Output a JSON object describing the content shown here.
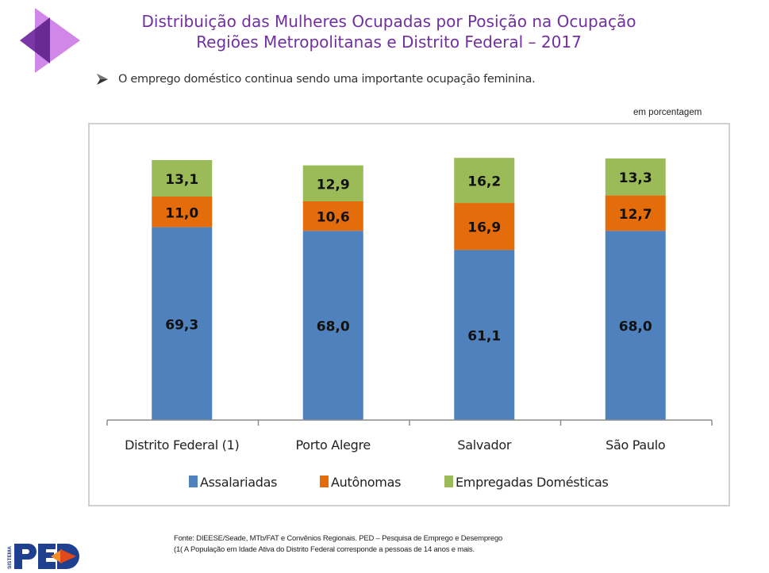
{
  "header": {
    "title_line1": "Distribuição das Mulheres Ocupadas por Posição na Ocupação",
    "title_line2": "Regiões Metropolitanas e Distrito Federal – 2017",
    "bullet": "O emprego doméstico continua sendo uma importante ocupação feminina.",
    "logo_icon": "purple-triangles-logo"
  },
  "unit_note": "em porcentagem",
  "colors": {
    "title": "#7030a0",
    "Assalariadas": "#4f81bd",
    "Autônomas": "#e46c0a",
    "Empregadas Domésticas": "#9bbb59"
  },
  "chart_data": {
    "type": "bar",
    "stacked": true,
    "categories": [
      "Distrito Federal (1)",
      "Porto Alegre",
      "Salvador",
      "São Paulo"
    ],
    "series": [
      {
        "name": "Assalariadas",
        "values": [
          69.3,
          68.0,
          61.1,
          68.0
        ],
        "labels": [
          "69,3",
          "68,0",
          "61,1",
          "68,0"
        ]
      },
      {
        "name": "Autônomas",
        "values": [
          11.0,
          10.6,
          16.9,
          12.7
        ],
        "labels": [
          "11,0",
          "10,6",
          "16,9",
          "12,7"
        ]
      },
      {
        "name": "Empregadas Domésticas",
        "values": [
          13.1,
          12.9,
          16.2,
          13.3
        ],
        "labels": [
          "13,1",
          "12,9",
          "16,2",
          "13,3"
        ]
      }
    ],
    "title": "",
    "xlabel": "",
    "ylabel": "",
    "ylim": [
      0,
      100
    ],
    "grid": false,
    "legend": "bottom",
    "unit": "em porcentagem"
  },
  "footer": {
    "source": "Fonte: DIEESE/Seade, MTb/FAT e Convênios Regionais. PED – Pesquisa de Emprego e Desemprego",
    "note": "(1( A População em Idade Ativa do Distrito Federal corresponde a pessoas de 14 anos e mais.",
    "logo_text": "SISTEMA PED"
  }
}
